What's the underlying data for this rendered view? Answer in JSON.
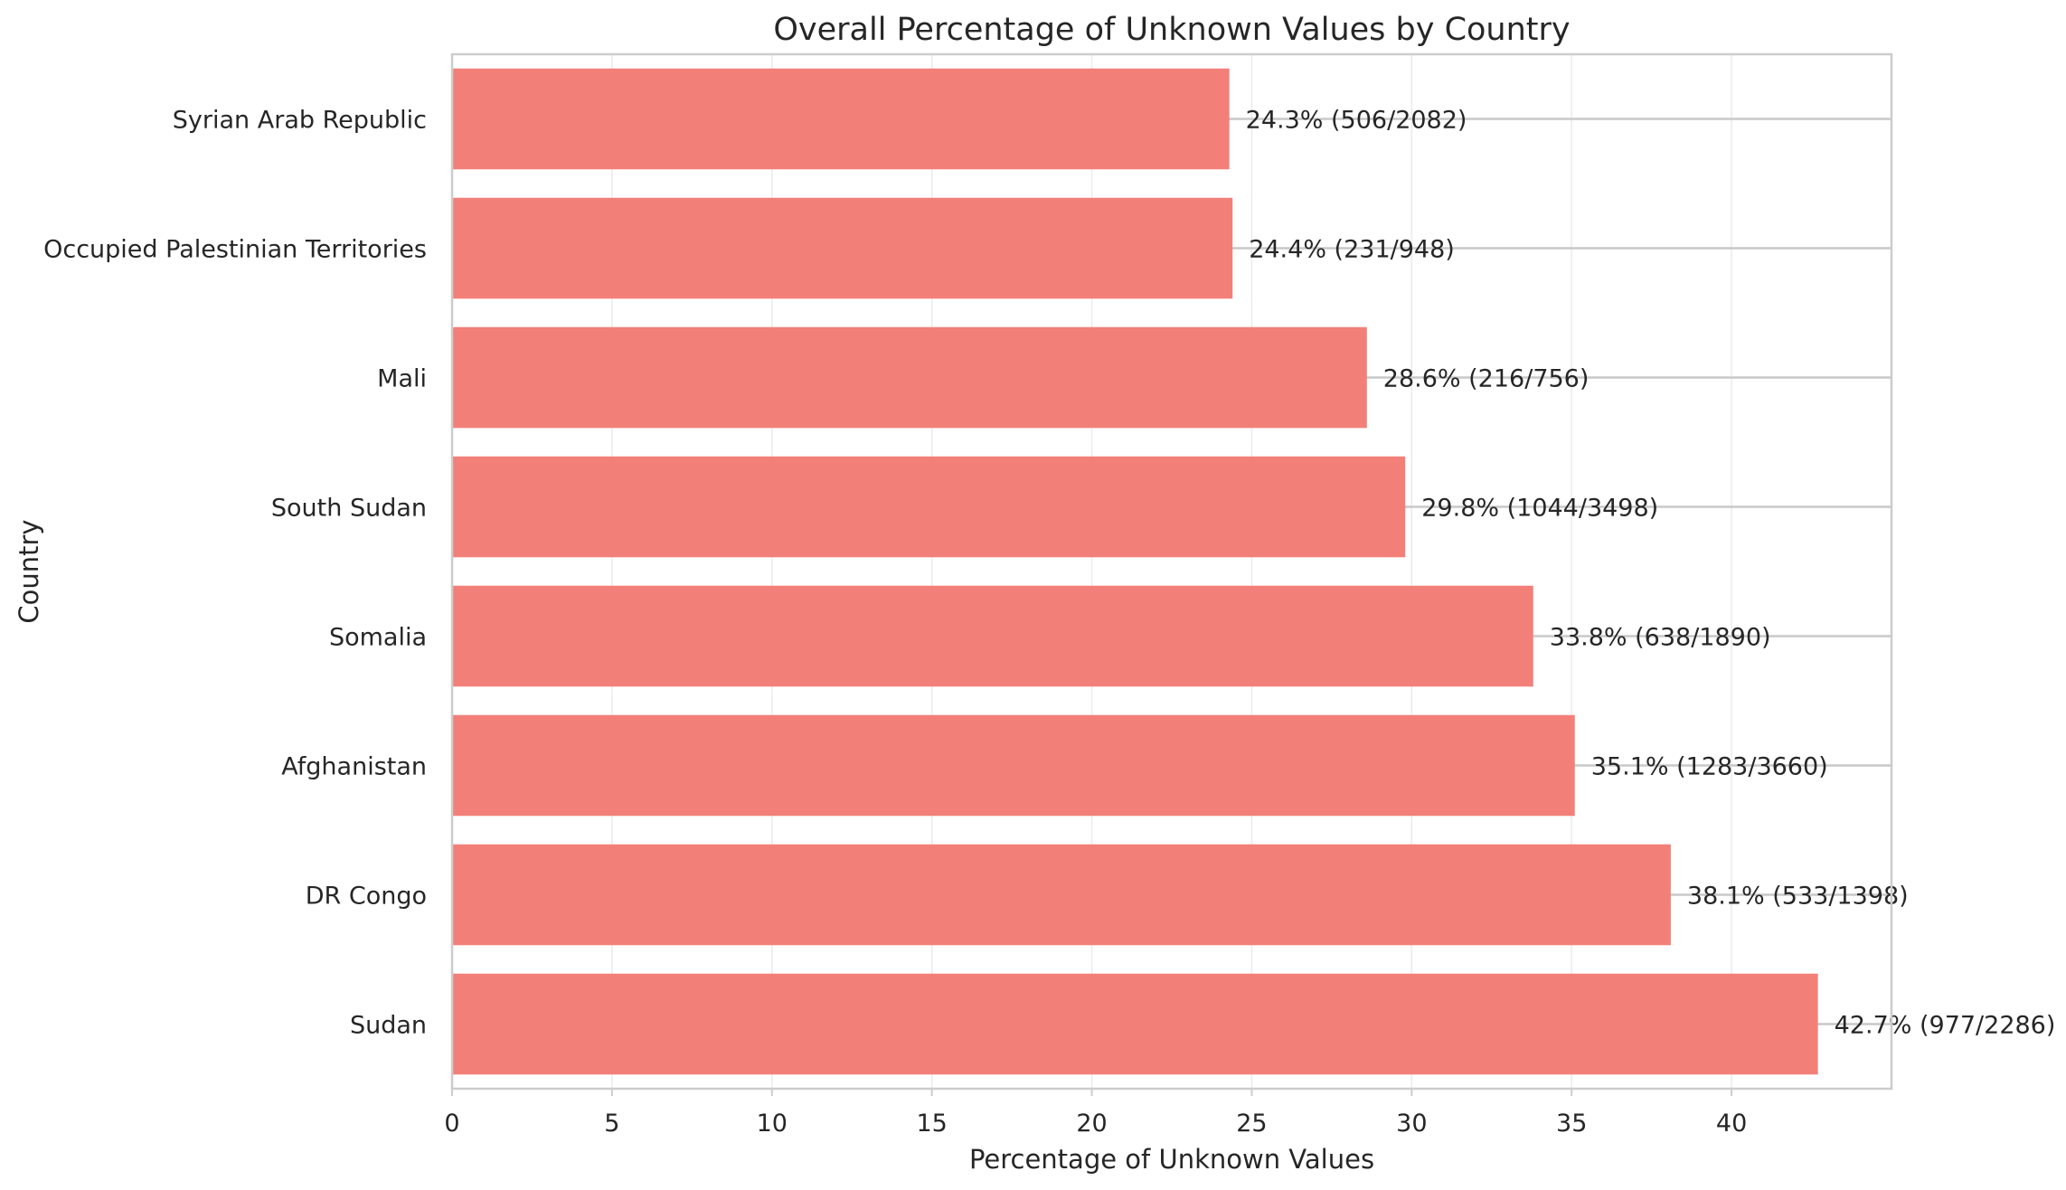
{
  "chart_data": {
    "type": "bar",
    "orientation": "horizontal",
    "title": "Overall Percentage of Unknown Values by Country",
    "xlabel": "Percentage of Unknown Values",
    "ylabel": "Country",
    "xlim": [
      0,
      45
    ],
    "xticks": [
      0,
      5,
      10,
      15,
      20,
      25,
      30,
      35,
      40
    ],
    "grid": true,
    "bar_color": "#f28079",
    "categories": [
      "Syrian Arab Republic",
      "Occupied Palestinian Territories",
      "Mali",
      "South Sudan",
      "Somalia",
      "Afghanistan",
      "DR Congo",
      "Sudan"
    ],
    "values": [
      24.3,
      24.4,
      28.6,
      29.8,
      33.8,
      35.1,
      38.1,
      42.7
    ],
    "data_labels": [
      "24.3% (506/2082)",
      "24.4% (231/948)",
      "28.6% (216/756)",
      "29.8% (1044/3498)",
      "33.8% (638/1890)",
      "35.1% (1283/3660)",
      "38.1% (533/1398)",
      "42.7% (977/2286)"
    ]
  }
}
